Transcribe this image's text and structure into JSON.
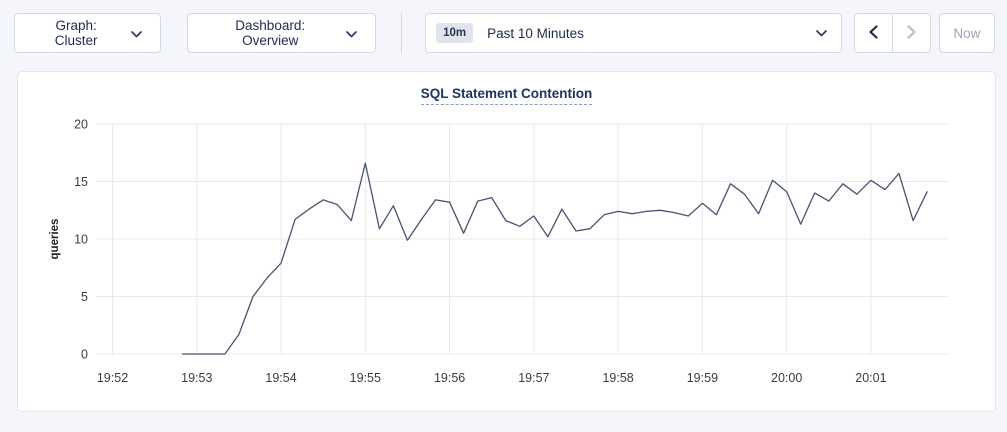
{
  "toolbar": {
    "graph_dropdown_label": "Graph: Cluster",
    "dashboard_dropdown_label": "Dashboard: Overview",
    "time_window_badge": "10m",
    "time_window_label": "Past 10 Minutes",
    "now_button_label": "Now",
    "prev_enabled": true,
    "next_enabled": false,
    "now_enabled": false
  },
  "colors": {
    "page_background": "#f4f6fb",
    "card_background": "#ffffff",
    "navy_text": "#1e2b4d",
    "disabled_text": "#9da4b3",
    "disabled_icon": "#b7bdc9",
    "gridline": "#e8e8e8",
    "tick_text": "#3c3c3c",
    "series_line": "#47546e",
    "title_text": "#1f3361"
  },
  "chart_data": {
    "type": "line",
    "title": "SQL Statement Contention",
    "ylabel": "queries",
    "ylim": [
      0,
      20
    ],
    "yticks": [
      0,
      5,
      10,
      15,
      20
    ],
    "x_tick_labels": [
      "19:52",
      "19:53",
      "19:54",
      "19:55",
      "19:56",
      "19:57",
      "19:58",
      "19:59",
      "20:00",
      "20:01"
    ],
    "grid": true,
    "legend": "none",
    "series": [
      {
        "name": "queries",
        "points": [
          [
            "19:52:50",
            0
          ],
          [
            "19:53:00",
            0
          ],
          [
            "19:53:10",
            0
          ],
          [
            "19:53:20",
            0
          ],
          [
            "19:53:30",
            1.7
          ],
          [
            "19:53:40",
            5.0
          ],
          [
            "19:53:50",
            6.6
          ],
          [
            "19:54:00",
            7.9
          ],
          [
            "19:54:10",
            11.7
          ],
          [
            "19:54:20",
            12.6
          ],
          [
            "19:54:30",
            13.4
          ],
          [
            "19:54:40",
            13.0
          ],
          [
            "19:54:50",
            11.6
          ],
          [
            "19:55:00",
            16.6
          ],
          [
            "19:55:10",
            10.9
          ],
          [
            "19:55:20",
            12.9
          ],
          [
            "19:55:30",
            9.9
          ],
          [
            "19:55:40",
            11.7
          ],
          [
            "19:55:50",
            13.4
          ],
          [
            "19:56:00",
            13.2
          ],
          [
            "19:56:10",
            10.5
          ],
          [
            "19:56:20",
            13.3
          ],
          [
            "19:56:30",
            13.6
          ],
          [
            "19:56:40",
            11.6
          ],
          [
            "19:56:50",
            11.1
          ],
          [
            "19:57:00",
            12.0
          ],
          [
            "19:57:10",
            10.2
          ],
          [
            "19:57:20",
            12.6
          ],
          [
            "19:57:30",
            10.7
          ],
          [
            "19:57:40",
            10.9
          ],
          [
            "19:57:50",
            12.1
          ],
          [
            "19:58:00",
            12.4
          ],
          [
            "19:58:10",
            12.2
          ],
          [
            "19:58:20",
            12.4
          ],
          [
            "19:58:30",
            12.5
          ],
          [
            "19:58:40",
            12.3
          ],
          [
            "19:58:50",
            12.0
          ],
          [
            "19:59:00",
            13.1
          ],
          [
            "19:59:10",
            12.1
          ],
          [
            "19:59:20",
            14.8
          ],
          [
            "19:59:30",
            13.9
          ],
          [
            "19:59:40",
            12.2
          ],
          [
            "19:59:50",
            15.1
          ],
          [
            "20:00:00",
            14.1
          ],
          [
            "20:00:10",
            11.3
          ],
          [
            "20:00:20",
            14.0
          ],
          [
            "20:00:30",
            13.3
          ],
          [
            "20:00:40",
            14.8
          ],
          [
            "20:00:50",
            13.9
          ],
          [
            "20:01:00",
            15.1
          ],
          [
            "20:01:10",
            14.3
          ],
          [
            "20:01:20",
            15.7
          ],
          [
            "20:01:30",
            11.6
          ],
          [
            "20:01:40",
            14.1
          ]
        ]
      }
    ]
  }
}
